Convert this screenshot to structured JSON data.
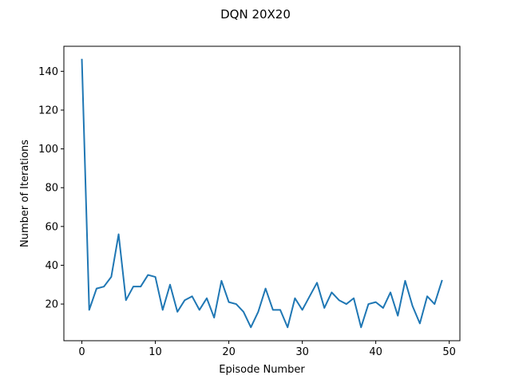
{
  "chart_data": {
    "type": "line",
    "title": "DQN 20X20",
    "xlabel": "Episode Number",
    "ylabel": "Number of Iterations",
    "xlim": [
      -2.45,
      51.45
    ],
    "ylim": [
      1.1,
      152.9
    ],
    "xticks": [
      0,
      10,
      20,
      30,
      40,
      50
    ],
    "yticks": [
      20,
      40,
      60,
      80,
      100,
      120,
      140
    ],
    "grid": false,
    "legend": "none",
    "series": [
      {
        "color": "#1f77b4",
        "x": [
          0,
          1,
          2,
          3,
          4,
          5,
          6,
          7,
          8,
          9,
          10,
          11,
          12,
          13,
          14,
          15,
          16,
          17,
          18,
          19,
          20,
          21,
          22,
          23,
          24,
          25,
          26,
          27,
          28,
          29,
          30,
          31,
          32,
          33,
          34,
          35,
          36,
          37,
          38,
          39,
          40,
          41,
          42,
          43,
          44,
          45,
          46,
          47,
          48,
          49
        ],
        "y": [
          146,
          17,
          28,
          29,
          34,
          56,
          22,
          29,
          29,
          35,
          34,
          17,
          30,
          16,
          22,
          24,
          17,
          23,
          13,
          32,
          21,
          20,
          16,
          8,
          16,
          28,
          17,
          17,
          8,
          23,
          17,
          24,
          31,
          18,
          26,
          22,
          20,
          23,
          8,
          20,
          21,
          18,
          26,
          14,
          32,
          19,
          10,
          24,
          20,
          32
        ]
      }
    ]
  }
}
